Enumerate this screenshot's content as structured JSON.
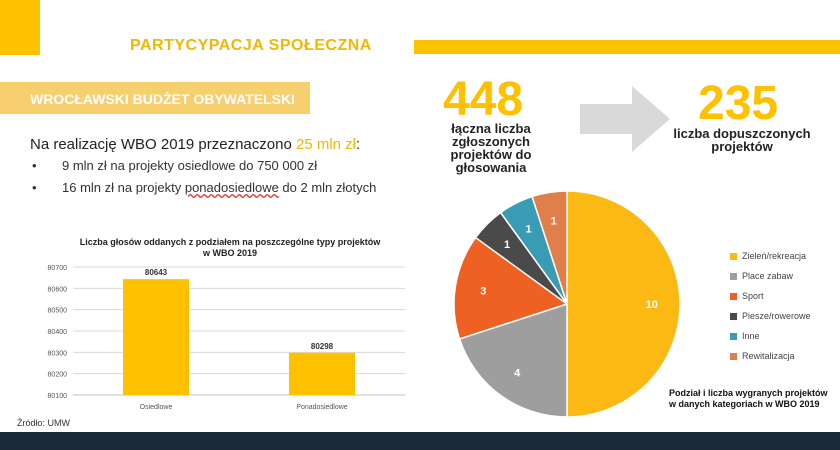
{
  "header": {
    "title": "PARTYCYPACJA SPOŁECZNA"
  },
  "section": {
    "title": "WROCŁAWSKI BUDŻET OBYWATELSKI"
  },
  "intro": {
    "prefix": "Na realizację WBO 2019 przeznaczono ",
    "highlight": "25 mln zł",
    "suffix": ":"
  },
  "bullets": [
    {
      "marker": "•",
      "text": "9 mln zł na projekty osiedlowe do 750 000 zł"
    },
    {
      "marker": "•",
      "pre": "16 mln zł na projekty ",
      "underlined": "ponadosiedlowe",
      "post": " do 2 mln złotych"
    }
  ],
  "stats": {
    "submitted": {
      "value": "448",
      "label": "łączna liczba zgłoszonych projektów do głosowania"
    },
    "accepted": {
      "value": "235",
      "label": "liczba dopuszczonych projektów"
    }
  },
  "source": "Źródło: UMW",
  "colors": {
    "accent": "#FFC000",
    "footer": "#1a2a38",
    "arrow": "#D9D9D9"
  },
  "chart_data": [
    {
      "type": "bar",
      "title": "Liczba głosów oddanych z podziałem na poszczególne typy projektów w WBO 2019",
      "categories": [
        "Osiedlowe",
        "Ponadosiedlowe"
      ],
      "values": [
        80643,
        80298
      ],
      "data_labels": [
        "80643",
        "80298"
      ],
      "ylim": [
        80100,
        80700
      ],
      "yticks": [
        80100,
        80200,
        80300,
        80400,
        80500,
        80600,
        80700
      ],
      "grid": true,
      "color": "#FFC000"
    },
    {
      "type": "pie",
      "title": "Podział i liczba wygranych projektów w danych kategoriach w WBO 2019",
      "labels": [
        "Zieleń/rekreacja",
        "Place zabaw",
        "Sport",
        "Piesze/rowerowe",
        "Inne",
        "Rewitalizacja"
      ],
      "values": [
        10,
        4,
        3,
        1,
        1,
        1
      ],
      "colors": [
        "#FDB913",
        "#9E9E9E",
        "#EE6123",
        "#4A4A4A",
        "#3A9BB4",
        "#E07F4A"
      ],
      "legend_position": "right"
    }
  ]
}
